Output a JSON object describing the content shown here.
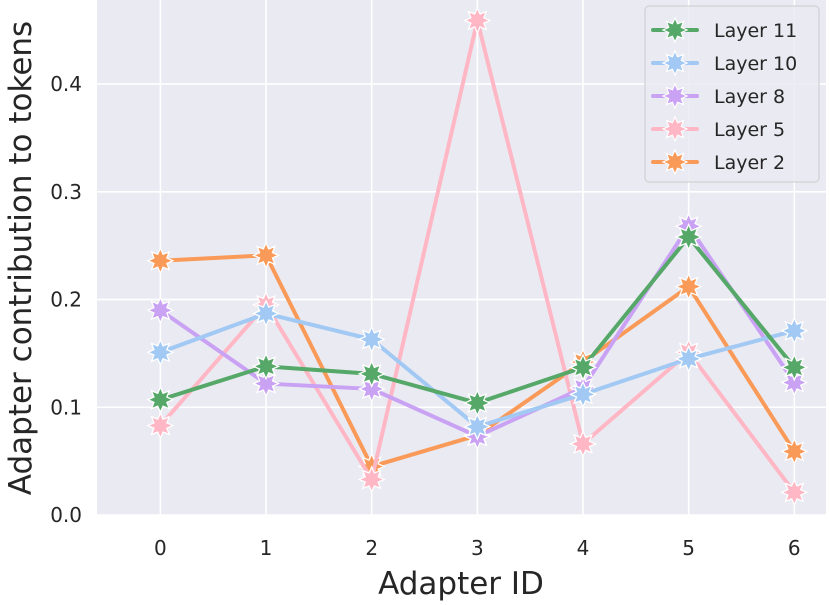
{
  "chart_data": {
    "type": "line",
    "title": "",
    "xlabel": "Adapter ID",
    "ylabel": "Adapter contribution to tokens",
    "x": [
      0,
      1,
      2,
      3,
      4,
      5,
      6
    ],
    "x_tick_labels": [
      "0",
      "1",
      "2",
      "3",
      "4",
      "5",
      "6"
    ],
    "y_ticks": [
      0.0,
      0.1,
      0.2,
      0.3,
      0.4
    ],
    "y_tick_labels": [
      "0.0",
      "0.1",
      "0.2",
      "0.3",
      "0.4"
    ],
    "xlim": [
      -0.6,
      6.3
    ],
    "ylim": [
      0.0,
      0.478
    ],
    "grid": true,
    "legend_position": "top-right",
    "series": [
      {
        "name": "Layer 11",
        "color": "#55a868",
        "values": [
          0.107,
          0.138,
          0.131,
          0.104,
          0.137,
          0.258,
          0.137
        ]
      },
      {
        "name": "Layer 10",
        "color": "#a1c9f4",
        "values": [
          0.151,
          0.187,
          0.163,
          0.082,
          0.112,
          0.145,
          0.171
        ]
      },
      {
        "name": "Layer 8",
        "color": "#c9a2f4",
        "values": [
          0.19,
          0.122,
          0.117,
          0.073,
          0.118,
          0.268,
          0.123
        ]
      },
      {
        "name": "Layer 5",
        "color": "#ffb7c5",
        "values": [
          0.083,
          0.195,
          0.033,
          0.459,
          0.066,
          0.151,
          0.021
        ]
      },
      {
        "name": "Layer 2",
        "color": "#fa9a58",
        "values": [
          0.236,
          0.241,
          0.045,
          0.074,
          0.142,
          0.212,
          0.059
        ]
      }
    ]
  }
}
